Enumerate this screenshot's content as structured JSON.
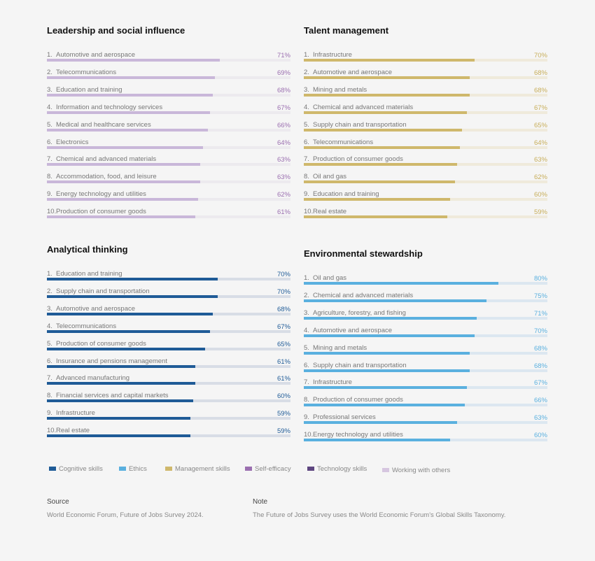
{
  "chart_data": [
    {
      "type": "bar",
      "title": "Leadership and social influence",
      "color": "#c9b7d9",
      "track": "#eceaee",
      "label_color": "#9b6fb0",
      "categories": [
        "Automotive and aerospace",
        "Telecommunications",
        "Education and training",
        "Information and technology services",
        "Medical and healthcare services",
        "Electronics",
        "Chemical and advanced materials",
        "Accommodation, food, and leisure",
        "Energy technology and utilities",
        "Production of consumer goods"
      ],
      "values": [
        71,
        69,
        68,
        67,
        66,
        64,
        63,
        63,
        62,
        61
      ]
    },
    {
      "type": "bar",
      "title": "Talent management",
      "color": "#cfb86c",
      "track": "#efeadb",
      "label_color": "#c8ae5a",
      "categories": [
        "Infrastructure",
        "Automotive and aerospace",
        "Mining and metals",
        "Chemical and advanced materials",
        "Supply chain and transportation",
        "Telecommunications",
        "Production of consumer goods",
        "Oil and gas",
        "Education and training",
        "Real estate"
      ],
      "values": [
        70,
        68,
        68,
        67,
        65,
        64,
        63,
        62,
        60,
        59
      ]
    },
    {
      "type": "bar",
      "title": "Analytical thinking",
      "color": "#1f5b97",
      "track": "#d8dde6",
      "label_color": "#1f5b97",
      "categories": [
        "Education and training",
        "Supply chain and transportation",
        "Automotive and aerospace",
        "Telecommunications",
        "Production of consumer goods",
        "Insurance and pensions management",
        "Advanced manufacturing",
        "Financial services and capital markets",
        "Infrastructure",
        "Real estate"
      ],
      "values": [
        70,
        70,
        68,
        67,
        65,
        61,
        61,
        60,
        59,
        59
      ]
    },
    {
      "type": "bar",
      "title": "Environmental stewardship",
      "color": "#5ab0df",
      "track": "#dce7f0",
      "label_color": "#5ab0df",
      "categories": [
        "Oil and gas",
        "Chemical and advanced materials",
        "Agriculture, forestry, and fishing",
        "Automotive and aerospace",
        "Mining and metals",
        "Supply chain and transportation",
        "Infrastructure",
        "Production of consumer goods",
        "Professional services",
        "Energy technology and utilities"
      ],
      "values": [
        80,
        75,
        71,
        70,
        68,
        68,
        67,
        66,
        63,
        60
      ]
    }
  ],
  "legend": [
    {
      "label": "Cognitive skills",
      "color": "#1f5b97"
    },
    {
      "label": "Ethics",
      "color": "#5ab0df"
    },
    {
      "label": "Management skills",
      "color": "#cfb86c"
    },
    {
      "label": "Self-efficacy",
      "color": "#9b6fb0"
    },
    {
      "label": "Technology skills",
      "color": "#5e4680"
    },
    {
      "label": "Working with others",
      "color": "#d6c6e0"
    }
  ],
  "source": {
    "heading": "Source",
    "text": "World Economic Forum, Future of Jobs Survey 2024."
  },
  "note": {
    "heading": "Note",
    "text": "The Future of Jobs Survey uses the World Economic Forum's Global Skills Taxonomy."
  }
}
